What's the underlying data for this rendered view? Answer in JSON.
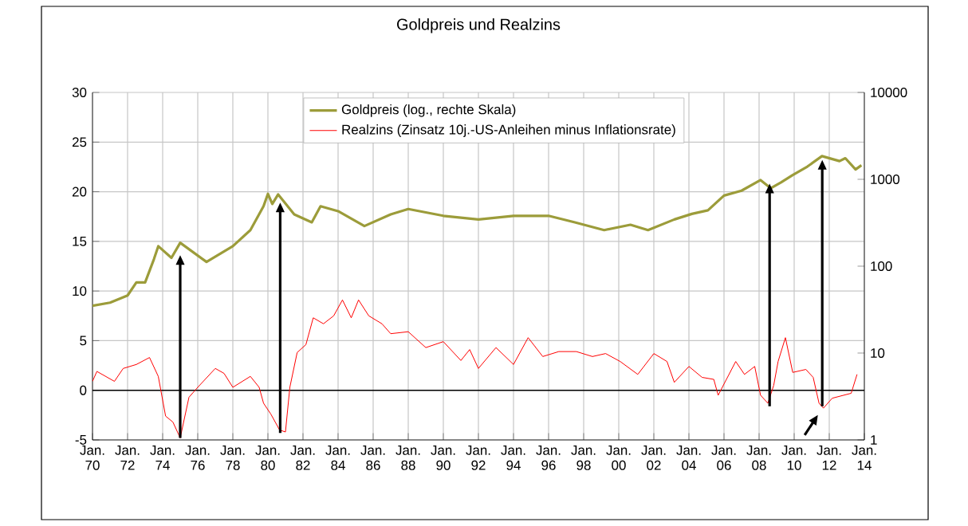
{
  "chart_data": {
    "type": "line",
    "title": "Goldpreis und Realzins",
    "xlim": [
      "1970-01",
      "2014-01"
    ],
    "xticks": [
      {
        "value": "1970-01",
        "label": "Jan. 70"
      },
      {
        "value": "1972-01",
        "label": "Jan. 72"
      },
      {
        "value": "1974-01",
        "label": "Jan. 74"
      },
      {
        "value": "1976-01",
        "label": "Jan. 76"
      },
      {
        "value": "1978-01",
        "label": "Jan. 78"
      },
      {
        "value": "1980-01",
        "label": "Jan. 80"
      },
      {
        "value": "1982-01",
        "label": "Jan. 82"
      },
      {
        "value": "1984-01",
        "label": "Jan. 84"
      },
      {
        "value": "1986-01",
        "label": "Jan. 86"
      },
      {
        "value": "1988-01",
        "label": "Jan. 88"
      },
      {
        "value": "1990-01",
        "label": "Jan. 90"
      },
      {
        "value": "1992-01",
        "label": "Jan. 92"
      },
      {
        "value": "1994-01",
        "label": "Jan. 94"
      },
      {
        "value": "1996-01",
        "label": "Jan. 96"
      },
      {
        "value": "1998-01",
        "label": "Jan. 98"
      },
      {
        "value": "2000-01",
        "label": "Jan. 00"
      },
      {
        "value": "2002-01",
        "label": "Jan. 02"
      },
      {
        "value": "2004-01",
        "label": "Jan. 04"
      },
      {
        "value": "2006-01",
        "label": "Jan. 06"
      },
      {
        "value": "2008-01",
        "label": "Jan. 08"
      },
      {
        "value": "2010-01",
        "label": "Jan. 10"
      },
      {
        "value": "2012-01",
        "label": "Jan. 12"
      },
      {
        "value": "2014-01",
        "label": "Jan. 14"
      }
    ],
    "ylim": [
      -5,
      30
    ],
    "yticks": [
      -5,
      0,
      5,
      10,
      15,
      20,
      25,
      30
    ],
    "y2lim": [
      1,
      10000
    ],
    "y2ticks": [
      1,
      10,
      100,
      1000,
      10000
    ],
    "log": "y2",
    "grid": true,
    "legend": "top",
    "marker": "none",
    "line_style": "solid",
    "ref_lines": [
      {
        "axis": "y",
        "value": 0,
        "color": "#000000"
      }
    ],
    "series": [
      {
        "name": "Goldpreis (log., rechte Skala)",
        "color": "#9c9c3a",
        "axis": "y2",
        "x": [
          "1970-01",
          "1971-01",
          "1972-01",
          "1972-07",
          "1973-01",
          "1973-07",
          "1973-10",
          "1974-07",
          "1975-01",
          "1976-07",
          "1978-01",
          "1979-01",
          "1979-10",
          "1980-01",
          "1980-04",
          "1980-08",
          "1981-07",
          "1982-07",
          "1983-01",
          "1984-01",
          "1985-07",
          "1987-01",
          "1988-01",
          "1990-01",
          "1992-01",
          "1994-01",
          "1996-01",
          "1997-07",
          "1999-03",
          "2000-09",
          "2001-09",
          "2003-03",
          "2004-03",
          "2005-02",
          "2006-01",
          "2007-01",
          "2008-02",
          "2008-09",
          "2009-04",
          "2009-12",
          "2010-10",
          "2011-08",
          "2012-08",
          "2012-12",
          "2013-07",
          "2013-11"
        ],
        "values": [
          35,
          38,
          46,
          65,
          65,
          120,
          170,
          125,
          186,
          112,
          170,
          260,
          490,
          680,
          520,
          670,
          395,
          320,
          490,
          430,
          290,
          395,
          455,
          380,
          345,
          380,
          380,
          320,
          260,
          300,
          260,
          345,
          400,
          440,
          650,
          740,
          980,
          790,
          920,
          1120,
          1400,
          1850,
          1620,
          1750,
          1300,
          1450
        ]
      },
      {
        "name": "Realzins (Zinsatz 10j.-US-Anleihen minus Inflationsrate)",
        "color": "#ff0000",
        "x": [
          "1970-01",
          "1970-04",
          "1970-10",
          "1971-04",
          "1971-10",
          "1972-07",
          "1973-04",
          "1973-10",
          "1974-03",
          "1974-08",
          "1975-01",
          "1975-07",
          "1976-01",
          "1977-01",
          "1977-07",
          "1978-01",
          "1979-01",
          "1979-07",
          "1979-10",
          "1980-03",
          "1980-09",
          "1981-01",
          "1981-04",
          "1981-09",
          "1982-03",
          "1982-08",
          "1983-03",
          "1983-10",
          "1984-04",
          "1984-10",
          "1985-03",
          "1985-10",
          "1986-07",
          "1987-01",
          "1988-01",
          "1989-01",
          "1990-01",
          "1991-01",
          "1991-07",
          "1992-01",
          "1993-01",
          "1994-01",
          "1994-11",
          "1995-09",
          "1996-08",
          "1997-08",
          "1998-07",
          "1999-04",
          "2000-02",
          "2001-02",
          "2002-01",
          "2002-10",
          "2003-03",
          "2004-01",
          "2004-10",
          "2005-06",
          "2005-09",
          "2006-09",
          "2007-03",
          "2007-10",
          "2008-02",
          "2008-07",
          "2008-11",
          "2009-02",
          "2009-07",
          "2009-12",
          "2010-09",
          "2011-02",
          "2011-06",
          "2011-09",
          "2012-03",
          "2013-04",
          "2013-08"
        ],
        "values": [
          0.9,
          1.9,
          1.4,
          0.9,
          2.2,
          2.6,
          3.3,
          1.4,
          -2.6,
          -3.2,
          -4.8,
          -0.7,
          0.3,
          2.2,
          1.7,
          0.3,
          1.4,
          0.3,
          -1.3,
          -2.4,
          -4.0,
          -4.2,
          0.3,
          3.8,
          4.6,
          7.3,
          6.7,
          7.5,
          9.1,
          7.3,
          9.1,
          7.5,
          6.7,
          5.7,
          5.9,
          4.3,
          4.9,
          3.0,
          4.1,
          2.2,
          4.3,
          2.6,
          5.3,
          3.4,
          3.9,
          3.9,
          3.4,
          3.7,
          2.9,
          1.6,
          3.7,
          2.9,
          0.8,
          2.4,
          1.3,
          1.1,
          -0.5,
          2.9,
          1.6,
          2.4,
          -0.5,
          -1.3,
          0.5,
          2.9,
          5.3,
          1.8,
          2.1,
          1.3,
          -1.3,
          -1.8,
          -0.8,
          -0.3,
          1.6
        ]
      }
    ]
  }
}
